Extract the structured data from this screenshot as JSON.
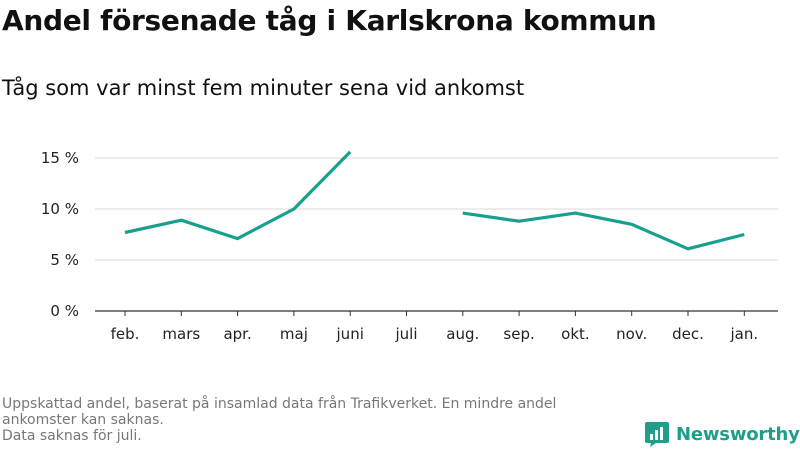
{
  "title": "Andel försenade tåg i Karlskrona kommun",
  "subtitle": "Tåg som var minst fem minuter sena vid ankomst",
  "footer": {
    "note_line1": "Uppskattad andel, baserat på insamlad data från Trafikverket. En mindre andel",
    "note_line2": "ankomster kan saknas.",
    "note_line3": "Data saknas för juli."
  },
  "brand": {
    "name": "Newsworthy",
    "icon": "newsworthy-logo-icon",
    "color": "#1f9e8a"
  },
  "chart_data": {
    "type": "line",
    "categories": [
      "feb.",
      "mars",
      "apr.",
      "maj",
      "juni",
      "juli",
      "aug.",
      "sep.",
      "okt.",
      "nov.",
      "dec.",
      "jan."
    ],
    "series": [
      {
        "values": [
          7.7,
          8.9,
          7.1,
          10.0,
          15.6,
          null,
          9.6,
          8.8,
          9.6,
          8.5,
          6.1,
          7.5
        ]
      }
    ],
    "yticks": [
      0,
      5,
      10,
      15
    ],
    "yticklabels": [
      "0 %",
      "5 %",
      "10 %",
      "15 %"
    ],
    "ylim": [
      0,
      15
    ],
    "grid": true,
    "line_color": "#16a08d",
    "grid_color": "#d9d9d9",
    "baseline_color": "#333333"
  }
}
